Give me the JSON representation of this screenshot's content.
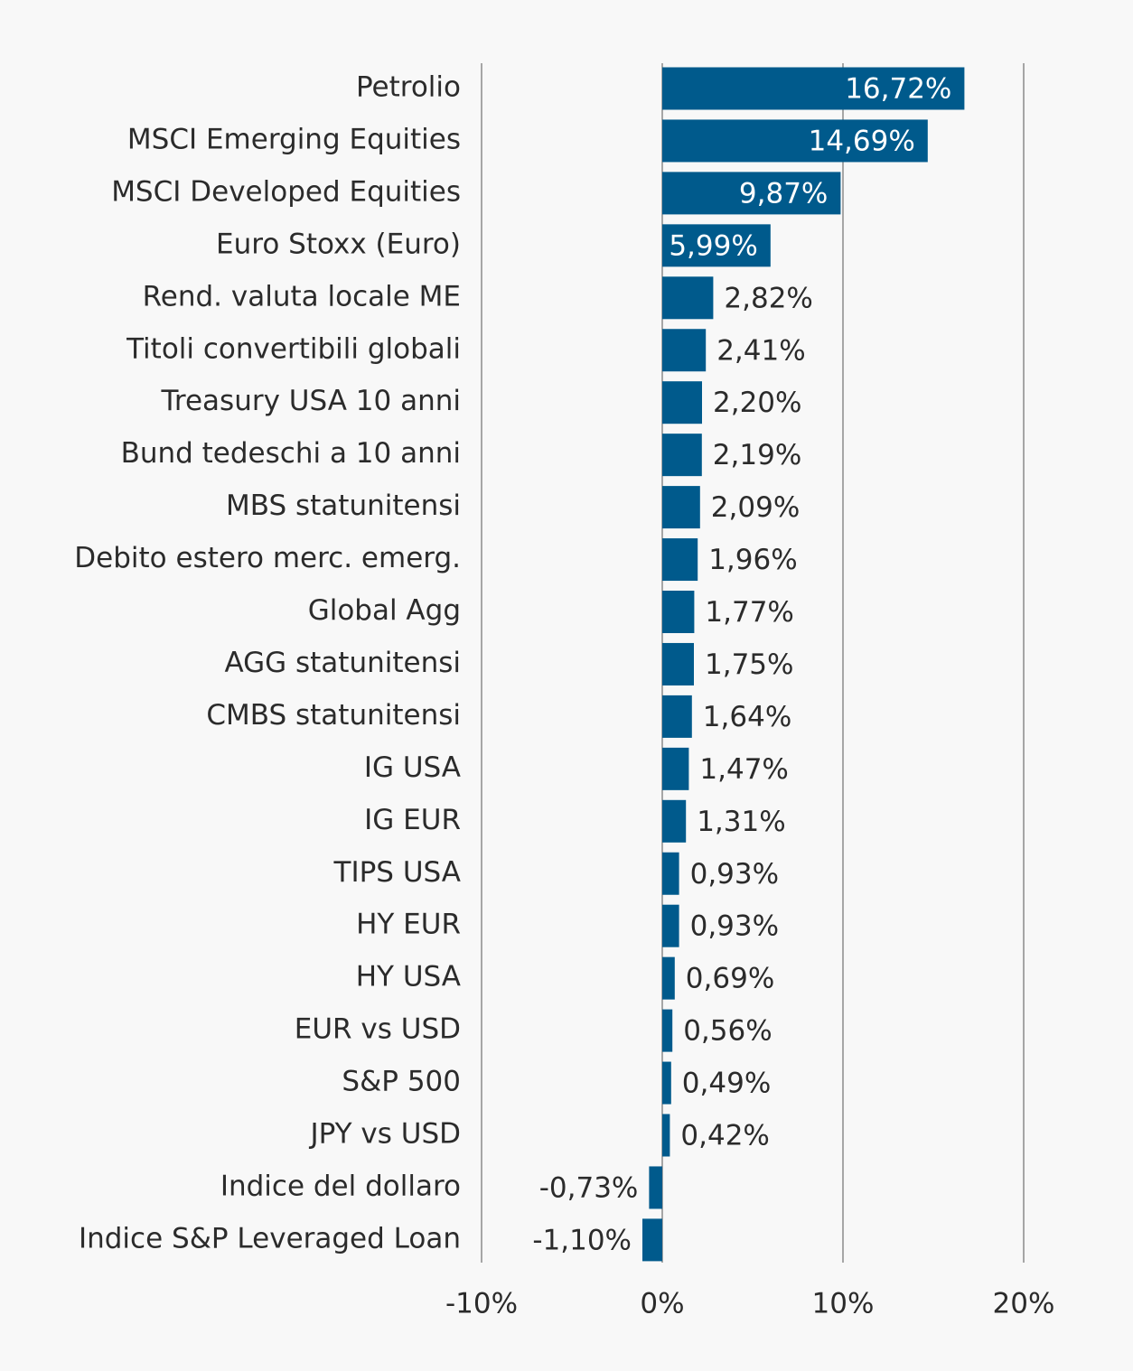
{
  "chart_data": {
    "type": "bar",
    "orientation": "horizontal",
    "categories": [
      "Petrolio",
      "MSCI Emerging Equities",
      "MSCI Developed Equities",
      "Euro Stoxx (Euro)",
      "Rend. valuta locale ME",
      "Titoli convertibili globali",
      "Treasury USA 10 anni",
      "Bund tedeschi a 10 anni",
      "MBS statunitensi",
      "Debito estero merc. emerg.",
      "Global Agg",
      "AGG statunitensi",
      "CMBS statunitensi",
      "IG USA",
      "IG EUR",
      "TIPS USA",
      "HY EUR",
      "HY USA",
      "EUR vs USD",
      "S&P 500",
      "JPY vs USD",
      "Indice del dollaro",
      "Indice S&P Leveraged Loan"
    ],
    "values": [
      16.72,
      14.69,
      9.87,
      5.99,
      2.82,
      2.41,
      2.2,
      2.19,
      2.09,
      1.96,
      1.77,
      1.75,
      1.64,
      1.47,
      1.31,
      0.93,
      0.93,
      0.69,
      0.56,
      0.49,
      0.42,
      -0.73,
      -1.1
    ],
    "value_labels": [
      "16,72%",
      "14,69%",
      "9,87%",
      "5,99%",
      "2,82%",
      "2,41%",
      "2,20%",
      "2,19%",
      "2,09%",
      "1,96%",
      "1,77%",
      "1,75%",
      "1,64%",
      "1,47%",
      "1,31%",
      "0,93%",
      "0,93%",
      "0,69%",
      "0,56%",
      "0,49%",
      "0,42%",
      "-0,73%",
      "-1,10%"
    ],
    "xlim": [
      -10,
      20
    ],
    "xticks": [
      -10,
      0,
      10,
      20
    ],
    "xtick_labels": [
      "-10%",
      "0%",
      "10%",
      "20%"
    ],
    "title": "",
    "xlabel": "",
    "ylabel": "",
    "grid": "vertical",
    "legend": "none",
    "colors": {
      "bar": "#005a8c",
      "grid": "#a6a6a6",
      "text": "#2b2b2b",
      "label_inside": "#ffffff",
      "background": "#f8f8f8"
    }
  }
}
